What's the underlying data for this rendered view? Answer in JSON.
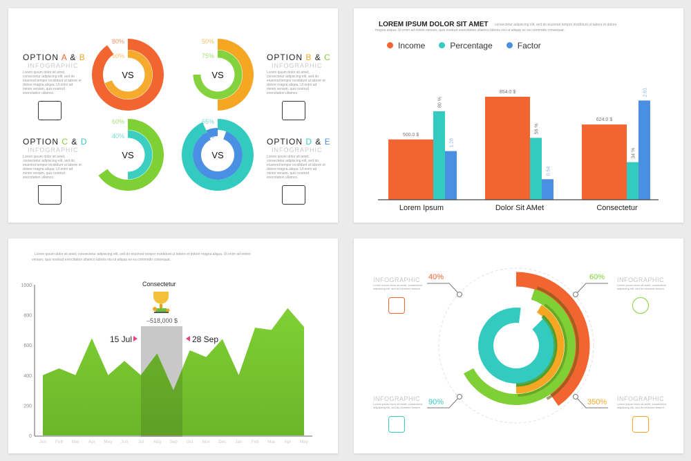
{
  "lorem_short": "Lorem ipsum dolor sit amet, consectetur adipiscing elit, sed do eiusmod tempor incididunt ut labore et dolore magna aliqua. Ut enim ad minim veniam, quis nostrud exercitation ullamco.",
  "panel1": {
    "options": [
      {
        "title": "OPTION",
        "a": "A",
        "amp": "&",
        "b": "B",
        "sub": "INFOGRAPHIC",
        "ca": "#f26430",
        "cb": "#f5a623",
        "icon": "book-icon"
      },
      {
        "title": "OPTION",
        "a": "B",
        "amp": "&",
        "b": "C",
        "sub": "INFOGRAPHIC",
        "ca": "#f5a623",
        "cb": "#7ed035",
        "icon": "atom-icon"
      },
      {
        "title": "OPTION",
        "a": "C",
        "amp": "&",
        "b": "D",
        "sub": "INFOGRAPHIC",
        "ca": "#7ed035",
        "cb": "#33cbbf",
        "icon": "flask-icon"
      },
      {
        "title": "OPTION",
        "a": "D",
        "amp": "&",
        "b": "E",
        "sub": "INFOGRAPHIC",
        "ca": "#33cbbf",
        "cb": "#4a90e2",
        "icon": "brain-icon"
      }
    ],
    "donuts": [
      {
        "center": "VS",
        "outer": "80%",
        "inner": "60%",
        "outer_color": "#f26430",
        "inner_color": "#f5a623"
      },
      {
        "center": "VS",
        "outer": "50%",
        "inner": "75%",
        "outer_color": "#f5a623",
        "inner_color": "#7ed035"
      },
      {
        "center": "VS",
        "outer": "60%",
        "inner": "40%",
        "outer_color": "#7ed035",
        "inner_color": "#33cbbf"
      },
      {
        "center": "VS",
        "outer": "65%",
        "inner": "90%",
        "outer_color": "#33cbbf",
        "inner_color": "#4a90e2"
      }
    ]
  },
  "panel2": {
    "title": "LOREM IPSUM DOLOR SIT AMET",
    "desc1": "consectetur adipiscing elit, sed do eiusmod tempor incididunt ut labore et dolore",
    "desc2": "magna aliqua. Ut enim ad minim veniam, quis nostrud exercitation ullamco laboris nisi ut aliquip ex ea commodo consequat."
  },
  "panel3": {
    "desc1": "Lorem ipsum dolor sit amet, consectetur adipiscing elit, sed do eiusmod tempor incididunt ut labore et dolore magna aliqua. Ut enim ad minim",
    "desc2": "veniam, quis nostrud exercitation ullamco laboris nisi ut aliquip ex ea commodo consequat.",
    "highlight_title": "Consectetur",
    "highlight_value": "–518,000 $",
    "start_label": "15 Jul",
    "end_label": "28 Sep"
  },
  "panel4": {
    "items": [
      {
        "label": "INFOGRAPHIC",
        "pct": "40%",
        "color": "#f26430",
        "icon": "lock-icon"
      },
      {
        "label": "INFOGRAPHIC",
        "pct": "60%",
        "color": "#7ed035",
        "icon": "lightbulb-gear-icon"
      },
      {
        "label": "INFOGRAPHIC",
        "pct": "90%",
        "color": "#33cbbf",
        "icon": "presentation-icon"
      },
      {
        "label": "INFOGRAPHIC",
        "pct": "350%",
        "color": "#f5a623",
        "icon": "podium-icon"
      }
    ]
  },
  "chart_data": [
    {
      "type": "bar",
      "title": "LOREM IPSUM DOLOR SIT AMET",
      "categories": [
        "Lorem Ipsum",
        "Dolor Sit AMet",
        "Consectetur"
      ],
      "series": [
        {
          "name": "Income",
          "color": "#f26430",
          "values": [
            500.0,
            854.0,
            624.0
          ],
          "labels": [
            "500.0 $",
            "854.0 $",
            "624.0 $"
          ]
        },
        {
          "name": "Percentage",
          "color": "#33cbbf",
          "values": [
            80,
            56,
            34
          ],
          "labels": [
            "80 %",
            "56 %",
            "34 %"
          ]
        },
        {
          "name": "Factor",
          "color": "#4a90e2",
          "values": [
            1.28,
            0.54,
            2.61
          ],
          "labels": [
            "1.28",
            "0.54",
            "2.61"
          ]
        }
      ],
      "legend": "top-left"
    },
    {
      "type": "area",
      "x": [
        "Jan",
        "Feb",
        "Mar",
        "Apr",
        "May",
        "Jun",
        "Jul",
        "Aug",
        "Sep",
        "Oct",
        "Nov",
        "Dec",
        "Jan",
        "Feb",
        "Mar",
        "Apr",
        "May"
      ],
      "values": [
        400,
        445,
        400,
        645,
        400,
        495,
        400,
        545,
        300,
        565,
        520,
        640,
        400,
        715,
        700,
        845,
        720
      ],
      "ylim": [
        0,
        1000
      ],
      "yticks": [
        0,
        200,
        400,
        600,
        800,
        1000
      ],
      "color": "#7ed035",
      "highlight": [
        "Jul",
        "Sep"
      ]
    },
    {
      "type": "radial",
      "values": [
        40,
        60,
        90,
        350
      ],
      "labels": [
        "40%",
        "60%",
        "90%",
        "350%"
      ]
    }
  ]
}
